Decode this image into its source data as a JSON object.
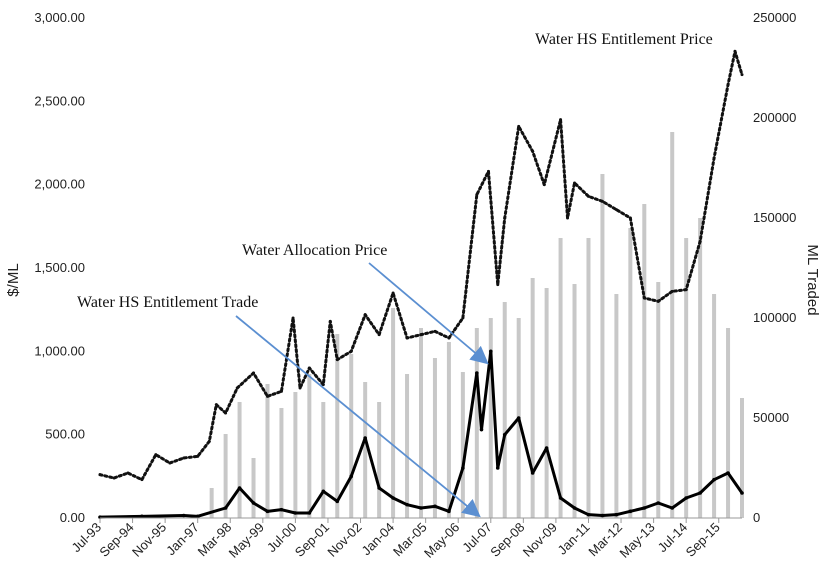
{
  "chart_data": {
    "type": "bar+line",
    "title": "",
    "xlabel": "",
    "ylabel_left": "$/ML",
    "ylabel_right": "ML Traded",
    "ylim_left": [
      0,
      3000
    ],
    "ylim_right": [
      0,
      250000
    ],
    "left_ticks": [
      "0.00",
      "500.00",
      "1,000.00",
      "1,500.00",
      "2,000.00",
      "2,500.00",
      "3,000.00"
    ],
    "right_ticks": [
      "0",
      "50000",
      "100000",
      "150000",
      "200000",
      "250000"
    ],
    "x_tick_labels": [
      "Jul-93",
      "Sep-94",
      "Nov-95",
      "Jan-97",
      "Mar-98",
      "May-99",
      "Jul-00",
      "Sep-01",
      "Nov-02",
      "Jan-04",
      "Mar-05",
      "May-06",
      "Jul-07",
      "Sep-08",
      "Nov-09",
      "Jan-11",
      "Mar-12",
      "May-13",
      "Jul-14",
      "Sep-15"
    ],
    "x_range": [
      "Jul-93",
      "Jul-16"
    ],
    "grid": false,
    "legend": "none",
    "colors": {
      "entitlement_price": "#111111",
      "allocation_price": "#000000",
      "volume_bars": "#c8c8c8",
      "annotation_arrow": "#5b8fd1"
    },
    "series": [
      {
        "name": "Water HS Entitlement Price",
        "axis": "left",
        "style": "dotted-line",
        "points": [
          [
            "Jul-93",
            260
          ],
          [
            "Jan-94",
            240
          ],
          [
            "Jul-94",
            270
          ],
          [
            "Jan-95",
            230
          ],
          [
            "Jul-95",
            380
          ],
          [
            "Jan-96",
            330
          ],
          [
            "Jul-96",
            360
          ],
          [
            "Jan-97",
            370
          ],
          [
            "Jun-97",
            460
          ],
          [
            "Sep-97",
            680
          ],
          [
            "Jan-98",
            630
          ],
          [
            "Jun-98",
            780
          ],
          [
            "Jan-99",
            870
          ],
          [
            "Jul-99",
            730
          ],
          [
            "Jan-00",
            760
          ],
          [
            "Jun-00",
            1200
          ],
          [
            "Sep-00",
            780
          ],
          [
            "Jan-01",
            900
          ],
          [
            "Jul-01",
            800
          ],
          [
            "Oct-01",
            1180
          ],
          [
            "Jan-02",
            950
          ],
          [
            "Jul-02",
            1000
          ],
          [
            "Jan-03",
            1220
          ],
          [
            "Jul-03",
            1100
          ],
          [
            "Jan-04",
            1350
          ],
          [
            "Jul-04",
            1080
          ],
          [
            "Jan-05",
            1100
          ],
          [
            "Jul-05",
            1120
          ],
          [
            "Jan-06",
            1080
          ],
          [
            "Jul-06",
            1200
          ],
          [
            "Jan-07",
            1940
          ],
          [
            "Jun-07",
            2080
          ],
          [
            "Oct-07",
            1400
          ],
          [
            "Jan-08",
            1800
          ],
          [
            "Jul-08",
            2350
          ],
          [
            "Jan-09",
            2200
          ],
          [
            "Jun-09",
            2000
          ],
          [
            "Jan-10",
            2390
          ],
          [
            "Apr-10",
            1800
          ],
          [
            "Jul-10",
            2010
          ],
          [
            "Jan-11",
            1930
          ],
          [
            "Jul-11",
            1900
          ],
          [
            "Jan-12",
            1850
          ],
          [
            "Jul-12",
            1800
          ],
          [
            "Jan-13",
            1320
          ],
          [
            "Jul-13",
            1300
          ],
          [
            "Jan-14",
            1360
          ],
          [
            "Jul-14",
            1370
          ],
          [
            "Jan-15",
            1660
          ],
          [
            "Jul-15",
            2160
          ],
          [
            "Jan-16",
            2600
          ],
          [
            "Apr-16",
            2800
          ],
          [
            "Jul-16",
            2660
          ]
        ]
      },
      {
        "name": "Water Allocation Price",
        "axis": "left",
        "style": "solid-line",
        "points": [
          [
            "Jul-93",
            5
          ],
          [
            "Jan-95",
            10
          ],
          [
            "Jul-96",
            15
          ],
          [
            "Jan-97",
            10
          ],
          [
            "Jan-98",
            60
          ],
          [
            "Jul-98",
            180
          ],
          [
            "Jan-99",
            90
          ],
          [
            "Jul-99",
            40
          ],
          [
            "Jan-00",
            50
          ],
          [
            "Jul-00",
            30
          ],
          [
            "Jan-01",
            30
          ],
          [
            "Jul-01",
            160
          ],
          [
            "Jan-02",
            100
          ],
          [
            "Jul-02",
            250
          ],
          [
            "Jan-03",
            480
          ],
          [
            "Jul-03",
            180
          ],
          [
            "Jan-04",
            120
          ],
          [
            "Jul-04",
            80
          ],
          [
            "Jan-05",
            60
          ],
          [
            "Jul-05",
            70
          ],
          [
            "Jan-06",
            40
          ],
          [
            "Jul-06",
            300
          ],
          [
            "Jan-07",
            870
          ],
          [
            "Mar-07",
            530
          ],
          [
            "Jul-07",
            1000
          ],
          [
            "Oct-07",
            300
          ],
          [
            "Jan-08",
            500
          ],
          [
            "Jul-08",
            600
          ],
          [
            "Jan-09",
            270
          ],
          [
            "Jul-09",
            420
          ],
          [
            "Jan-10",
            120
          ],
          [
            "Jul-10",
            60
          ],
          [
            "Jan-11",
            20
          ],
          [
            "Jul-11",
            15
          ],
          [
            "Jan-12",
            20
          ],
          [
            "Jul-12",
            40
          ],
          [
            "Jan-13",
            60
          ],
          [
            "Jul-13",
            90
          ],
          [
            "Jan-14",
            60
          ],
          [
            "Jul-14",
            120
          ],
          [
            "Jan-15",
            150
          ],
          [
            "Jul-15",
            230
          ],
          [
            "Jan-16",
            270
          ],
          [
            "Jul-16",
            150
          ]
        ]
      },
      {
        "name": "Water HS Entitlement Trade",
        "axis": "right",
        "style": "bars",
        "points": [
          [
            "Jul-97",
            15000
          ],
          [
            "Jan-98",
            42000
          ],
          [
            "Jul-98",
            58000
          ],
          [
            "Jan-99",
            30000
          ],
          [
            "Jul-99",
            67000
          ],
          [
            "Jan-00",
            55000
          ],
          [
            "Jul-00",
            63000
          ],
          [
            "Jan-01",
            72000
          ],
          [
            "Jul-01",
            58000
          ],
          [
            "Jan-02",
            92000
          ],
          [
            "Jul-02",
            82000
          ],
          [
            "Jan-03",
            68000
          ],
          [
            "Jul-03",
            58000
          ],
          [
            "Jan-04",
            105000
          ],
          [
            "Jul-04",
            72000
          ],
          [
            "Jan-05",
            95000
          ],
          [
            "Jul-05",
            80000
          ],
          [
            "Jan-06",
            88000
          ],
          [
            "Jul-06",
            73000
          ],
          [
            "Jan-07",
            95000
          ],
          [
            "Jul-07",
            100000
          ],
          [
            "Jan-08",
            108000
          ],
          [
            "Jul-08",
            100000
          ],
          [
            "Jan-09",
            120000
          ],
          [
            "Jul-09",
            115000
          ],
          [
            "Jan-10",
            140000
          ],
          [
            "Jul-10",
            117000
          ],
          [
            "Jan-11",
            140000
          ],
          [
            "Jul-11",
            172000
          ],
          [
            "Jan-12",
            112000
          ],
          [
            "Jul-12",
            145000
          ],
          [
            "Jan-13",
            157000
          ],
          [
            "Jul-13",
            118000
          ],
          [
            "Jan-14",
            193000
          ],
          [
            "Jul-14",
            140000
          ],
          [
            "Jan-15",
            150000
          ],
          [
            "Jul-15",
            112000
          ],
          [
            "Jan-16",
            95000
          ],
          [
            "Jul-16",
            60000
          ]
        ]
      }
    ],
    "annotations": [
      {
        "text": "Water HS Entitlement Price",
        "target_series": "Water HS Entitlement Price",
        "arrow": false
      },
      {
        "text": "Water Allocation Price",
        "target_series": "Water Allocation Price",
        "arrow": true,
        "points_to": [
          "Jul-07",
          1000
        ]
      },
      {
        "text": "Water HS Entitlement Trade",
        "target_series": "Water HS Entitlement Trade",
        "arrow": true,
        "points_to": [
          "Jul-07",
          0
        ]
      }
    ]
  }
}
